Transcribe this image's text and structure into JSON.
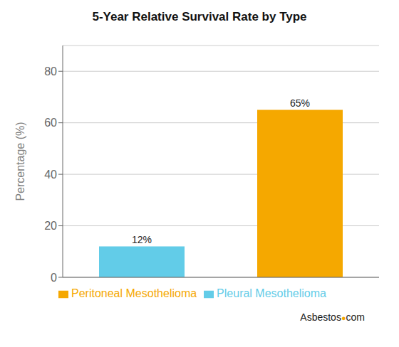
{
  "chart_data": {
    "type": "bar",
    "title": "5-Year Relative Survival Rate by Type",
    "ylabel": "Percentage (%)",
    "categories": [
      null,
      null
    ],
    "series": [
      {
        "name": "Pleural Mesothelioma",
        "color": "#62cce8",
        "values": [
          12,
          null
        ],
        "value_labels": [
          "12%",
          null
        ]
      },
      {
        "name": "Peritoneal Mesothelioma",
        "color": "#f5a800",
        "values": [
          null,
          65
        ],
        "value_labels": [
          null,
          "65%"
        ]
      }
    ],
    "stacked": true,
    "ylim": [
      0,
      90
    ],
    "yticks": [
      0,
      20,
      40,
      60,
      80
    ],
    "grid": true,
    "data_labels": true,
    "tick_labels": "y",
    "annotations": [
      {
        "text": "Asbestos"
      },
      {
        "text": "●",
        "color": "#f5a800"
      },
      {
        "text": "com"
      }
    ]
  }
}
